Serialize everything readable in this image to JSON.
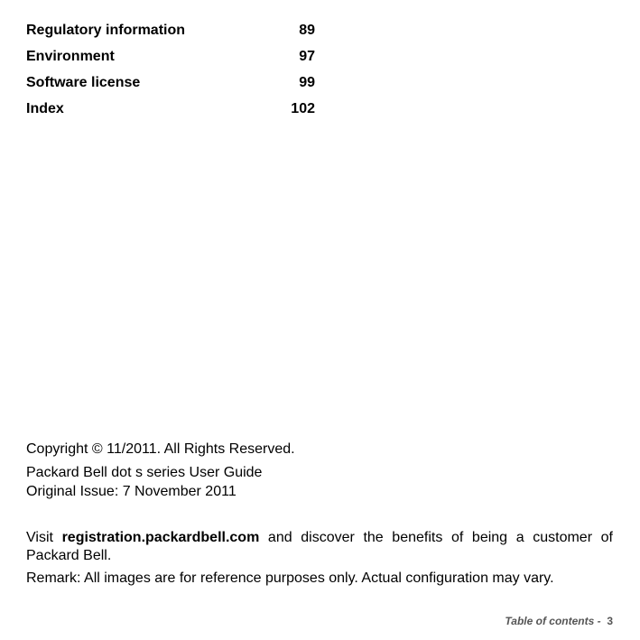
{
  "toc": [
    {
      "title": "Regulatory information",
      "page": "89"
    },
    {
      "title": "Environment",
      "page": "97"
    },
    {
      "title": "Software license",
      "page": "99"
    },
    {
      "title": "Index",
      "page": "102"
    }
  ],
  "copyright": "Copyright © 11/2011. All Rights Reserved.",
  "guide_title": "Packard Bell dot s series User Guide",
  "original_issue": "Original Issue: 7 November 2011",
  "visit": {
    "prefix": "Visit",
    "link": "registration.packardbell.com",
    "suffix": "and discover the benefits of being a customer of Packard Bell."
  },
  "remark": "Remark: All images are for reference purposes only. Actual configuration may vary.",
  "footer": {
    "label": "Table of contents -",
    "page": "3"
  }
}
